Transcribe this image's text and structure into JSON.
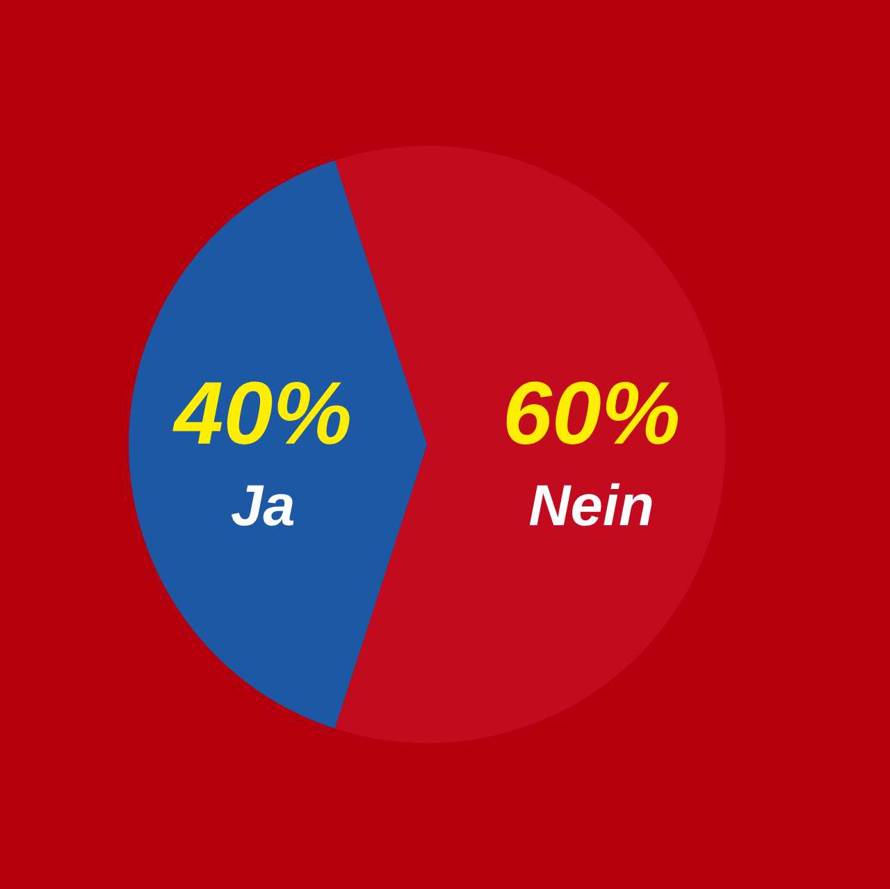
{
  "chart_data": {
    "type": "pie",
    "categories": [
      "Ja",
      "Nein"
    ],
    "values": [
      40,
      60
    ],
    "colors": [
      "#1c58a4",
      "#c30b1f"
    ],
    "value_labels": [
      "40%",
      "60%"
    ]
  }
}
